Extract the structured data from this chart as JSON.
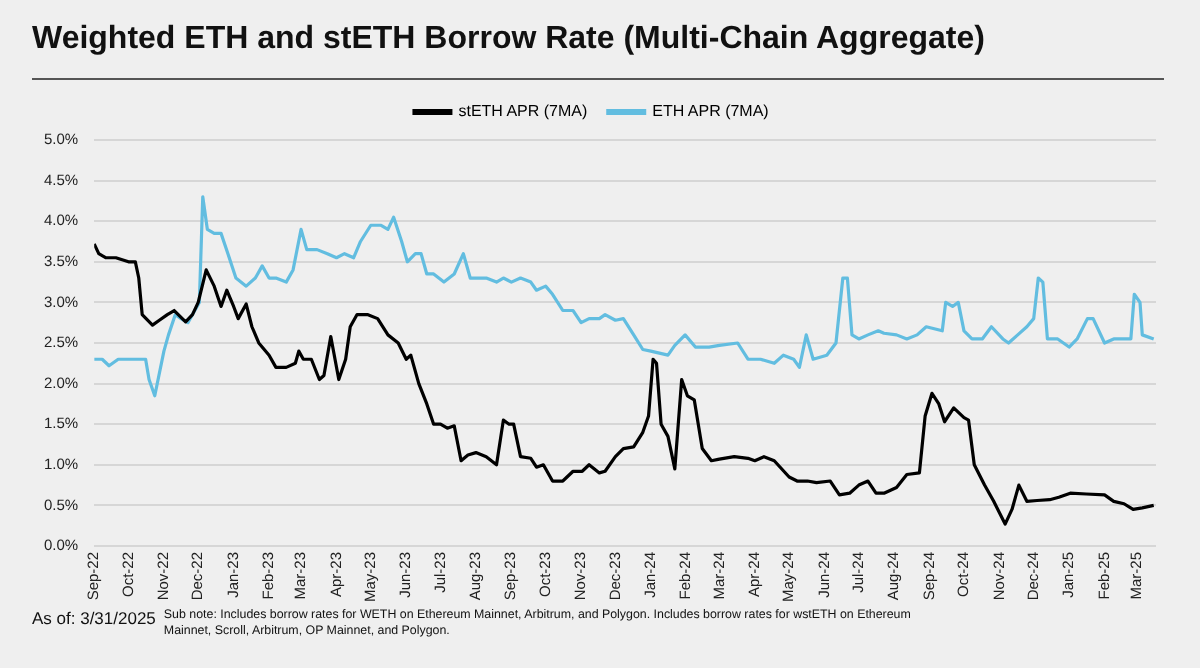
{
  "chart_data": {
    "type": "line",
    "title": "Weighted ETH and stETH Borrow Rate (Multi-Chain Aggregate)",
    "annotations": [
      "As of: 3/31/2025",
      "Sub note: Includes borrow rates for WETH on Ethereum Mainnet, Arbitrum, and Polygon. Includes borrow rates for wstETH on Ethereum Mainnet, Scroll, Arbitrum, OP Mainnet, and Polygon."
    ],
    "series": [
      {
        "name": "stETH APR (7MA)",
        "color": "#000000",
        "x": [
          "2022-09-01",
          "2022-09-05",
          "2022-09-11",
          "2022-09-20",
          "2022-10-01",
          "2022-10-07",
          "2022-10-10",
          "2022-10-13",
          "2022-10-22",
          "2022-10-28",
          "2022-11-04",
          "2022-11-10",
          "2022-11-20",
          "2022-11-26",
          "2022-12-01",
          "2022-12-08",
          "2022-12-15",
          "2022-12-21",
          "2022-12-26",
          "2023-01-01",
          "2023-01-05",
          "2023-01-12",
          "2023-01-17",
          "2023-01-23",
          "2023-02-01",
          "2023-02-07",
          "2023-02-16",
          "2023-02-24",
          "2023-02-27",
          "2023-03-03",
          "2023-03-10",
          "2023-03-17",
          "2023-03-21",
          "2023-03-27",
          "2023-04-03",
          "2023-04-09",
          "2023-04-13",
          "2023-04-19",
          "2023-04-28",
          "2023-05-07",
          "2023-05-16",
          "2023-05-25",
          "2023-06-01",
          "2023-06-05",
          "2023-06-12",
          "2023-06-19",
          "2023-06-25",
          "2023-07-01",
          "2023-07-07",
          "2023-07-13",
          "2023-07-19",
          "2023-07-25",
          "2023-08-01",
          "2023-08-10",
          "2023-08-19",
          "2023-08-25",
          "2023-08-30",
          "2023-09-03",
          "2023-09-09",
          "2023-09-18",
          "2023-09-23",
          "2023-09-29",
          "2023-10-07",
          "2023-10-16",
          "2023-10-25",
          "2023-11-02",
          "2023-11-08",
          "2023-11-17",
          "2023-11-22",
          "2023-12-01",
          "2023-12-08",
          "2023-12-17",
          "2023-12-25",
          "2023-12-30",
          "2024-01-03",
          "2024-01-06",
          "2024-01-10",
          "2024-01-16",
          "2024-01-22",
          "2024-01-28",
          "2024-02-02",
          "2024-02-08",
          "2024-02-15",
          "2024-02-23",
          "2024-03-01",
          "2024-03-14",
          "2024-03-26",
          "2024-04-01",
          "2024-04-09",
          "2024-04-18",
          "2024-05-01",
          "2024-05-08",
          "2024-05-17",
          "2024-05-25",
          "2024-06-06",
          "2024-06-14",
          "2024-06-23",
          "2024-07-01",
          "2024-07-09",
          "2024-07-16",
          "2024-07-23",
          "2024-08-03",
          "2024-08-12",
          "2024-08-23",
          "2024-08-28",
          "2024-09-03",
          "2024-09-09",
          "2024-09-14",
          "2024-09-22",
          "2024-10-01",
          "2024-10-05",
          "2024-10-10",
          "2024-10-19",
          "2024-10-27",
          "2024-11-06",
          "2024-11-12",
          "2024-11-18",
          "2024-11-25",
          "2024-12-04",
          "2024-12-15",
          "2024-12-23",
          "2025-01-02",
          "2025-01-16",
          "2025-02-01",
          "2025-02-09",
          "2025-02-18",
          "2025-02-26",
          "2025-03-06",
          "2025-03-16"
        ],
        "values": [
          3.72,
          3.6,
          3.55,
          3.55,
          3.5,
          3.5,
          3.3,
          2.85,
          2.72,
          2.78,
          2.85,
          2.9,
          2.76,
          2.85,
          3.0,
          3.4,
          3.2,
          2.95,
          3.15,
          2.95,
          2.8,
          2.98,
          2.7,
          2.5,
          2.35,
          2.2,
          2.2,
          2.25,
          2.4,
          2.3,
          2.3,
          2.05,
          2.1,
          2.58,
          2.05,
          2.3,
          2.7,
          2.85,
          2.85,
          2.8,
          2.6,
          2.5,
          2.3,
          2.35,
          2.0,
          1.75,
          1.5,
          1.5,
          1.45,
          1.48,
          1.05,
          1.12,
          1.15,
          1.1,
          1.0,
          1.55,
          1.5,
          1.5,
          1.1,
          1.08,
          0.97,
          1.0,
          0.8,
          0.8,
          0.92,
          0.92,
          1.0,
          0.9,
          0.92,
          1.1,
          1.2,
          1.22,
          1.4,
          1.6,
          2.3,
          2.25,
          1.5,
          1.35,
          0.95,
          2.05,
          1.85,
          1.8,
          1.2,
          1.05,
          1.07,
          1.1,
          1.08,
          1.05,
          1.1,
          1.05,
          0.85,
          0.8,
          0.8,
          0.78,
          0.8,
          0.63,
          0.65,
          0.75,
          0.8,
          0.65,
          0.65,
          0.72,
          0.88,
          0.9,
          1.6,
          1.88,
          1.75,
          1.53,
          1.7,
          1.58,
          1.55,
          1.0,
          0.75,
          0.55,
          0.27,
          0.45,
          0.75,
          0.55,
          0.56,
          0.57,
          0.6,
          0.65,
          0.64,
          0.63,
          0.55,
          0.52,
          0.45,
          0.47,
          0.5
        ]
      },
      {
        "name": "ETH APR (7MA)",
        "color": "#62bde0",
        "x": [
          "2022-09-01",
          "2022-09-08",
          "2022-09-14",
          "2022-09-22",
          "2022-10-01",
          "2022-10-07",
          "2022-10-16",
          "2022-10-19",
          "2022-10-24",
          "2022-11-01",
          "2022-11-05",
          "2022-11-11",
          "2022-11-16",
          "2022-11-22",
          "2022-11-28",
          "2022-12-02",
          "2022-12-05",
          "2022-12-09",
          "2022-12-15",
          "2022-12-21",
          "2022-12-27",
          "2023-01-03",
          "2023-01-12",
          "2023-01-20",
          "2023-01-26",
          "2023-02-01",
          "2023-02-07",
          "2023-02-16",
          "2023-02-22",
          "2023-03-01",
          "2023-03-06",
          "2023-03-15",
          "2023-03-24",
          "2023-04-01",
          "2023-04-08",
          "2023-04-16",
          "2023-04-22",
          "2023-05-01",
          "2023-05-10",
          "2023-05-16",
          "2023-05-21",
          "2023-05-28",
          "2023-06-02",
          "2023-06-09",
          "2023-06-14",
          "2023-06-19",
          "2023-06-25",
          "2023-07-04",
          "2023-07-13",
          "2023-07-21",
          "2023-07-27",
          "2023-08-01",
          "2023-08-10",
          "2023-08-19",
          "2023-08-25",
          "2023-09-01",
          "2023-09-09",
          "2023-09-18",
          "2023-09-23",
          "2023-10-01",
          "2023-10-07",
          "2023-10-16",
          "2023-10-25",
          "2023-11-01",
          "2023-11-08",
          "2023-11-17",
          "2023-11-22",
          "2023-12-01",
          "2023-12-08",
          "2023-12-17",
          "2023-12-25",
          "2024-01-01",
          "2024-01-16",
          "2024-01-22",
          "2024-01-31",
          "2024-02-09",
          "2024-02-21",
          "2024-03-01",
          "2024-03-17",
          "2024-03-26",
          "2024-04-06",
          "2024-04-18",
          "2024-04-26",
          "2024-05-05",
          "2024-05-10",
          "2024-05-16",
          "2024-05-22",
          "2024-06-03",
          "2024-06-11",
          "2024-06-17",
          "2024-06-21",
          "2024-06-25",
          "2024-07-01",
          "2024-07-09",
          "2024-07-18",
          "2024-07-23",
          "2024-08-03",
          "2024-08-12",
          "2024-08-21",
          "2024-08-29",
          "2024-09-12",
          "2024-09-15",
          "2024-09-21",
          "2024-09-26",
          "2024-10-01",
          "2024-10-08",
          "2024-10-17",
          "2024-10-25",
          "2024-11-04",
          "2024-11-09",
          "2024-11-17",
          "2024-11-25",
          "2024-12-01",
          "2024-12-05",
          "2024-12-09",
          "2024-12-13",
          "2024-12-22",
          "2025-01-01",
          "2025-01-08",
          "2025-01-17",
          "2025-01-22",
          "2025-02-01",
          "2025-02-09",
          "2025-02-24",
          "2025-02-27",
          "2025-03-04",
          "2025-03-06",
          "2025-03-16"
        ],
        "values": [
          2.3,
          2.3,
          2.22,
          2.3,
          2.3,
          2.3,
          2.3,
          2.05,
          1.85,
          2.4,
          2.6,
          2.85,
          2.8,
          2.75,
          2.9,
          3.0,
          4.3,
          3.9,
          3.85,
          3.85,
          3.6,
          3.3,
          3.2,
          3.3,
          3.45,
          3.3,
          3.3,
          3.25,
          3.4,
          3.9,
          3.65,
          3.65,
          3.6,
          3.55,
          3.6,
          3.55,
          3.75,
          3.95,
          3.95,
          3.9,
          4.05,
          3.75,
          3.5,
          3.6,
          3.6,
          3.35,
          3.35,
          3.25,
          3.35,
          3.6,
          3.3,
          3.3,
          3.3,
          3.25,
          3.3,
          3.25,
          3.3,
          3.25,
          3.15,
          3.2,
          3.1,
          2.9,
          2.9,
          2.75,
          2.8,
          2.8,
          2.85,
          2.78,
          2.8,
          2.6,
          2.42,
          2.4,
          2.35,
          2.47,
          2.6,
          2.45,
          2.45,
          2.47,
          2.5,
          2.3,
          2.3,
          2.25,
          2.35,
          2.3,
          2.2,
          2.6,
          2.3,
          2.35,
          2.5,
          3.3,
          3.3,
          2.6,
          2.55,
          2.6,
          2.65,
          2.62,
          2.6,
          2.55,
          2.6,
          2.7,
          2.65,
          3.0,
          2.95,
          3.0,
          2.65,
          2.55,
          2.55,
          2.7,
          2.55,
          2.5,
          2.6,
          2.7,
          2.8,
          3.3,
          3.25,
          2.55,
          2.55,
          2.45,
          2.55,
          2.8,
          2.8,
          2.5,
          2.55,
          2.55,
          3.1,
          3.0,
          2.6,
          2.55
        ]
      }
    ],
    "xlim": [
      "2022-09-01",
      "2025-03-18"
    ],
    "xticks": [
      {
        "value": "2022-09-01",
        "label": "Sep-22"
      },
      {
        "value": "2022-10-01",
        "label": "Oct-22"
      },
      {
        "value": "2022-11-01",
        "label": "Nov-22"
      },
      {
        "value": "2022-12-01",
        "label": "Dec-22"
      },
      {
        "value": "2023-01-01",
        "label": "Jan-23"
      },
      {
        "value": "2023-02-01",
        "label": "Feb-23"
      },
      {
        "value": "2023-03-01",
        "label": "Mar-23"
      },
      {
        "value": "2023-04-01",
        "label": "Apr-23"
      },
      {
        "value": "2023-05-01",
        "label": "May-23"
      },
      {
        "value": "2023-06-01",
        "label": "Jun-23"
      },
      {
        "value": "2023-07-01",
        "label": "Jul-23"
      },
      {
        "value": "2023-08-01",
        "label": "Aug-23"
      },
      {
        "value": "2023-09-01",
        "label": "Sep-23"
      },
      {
        "value": "2023-10-01",
        "label": "Oct-23"
      },
      {
        "value": "2023-11-01",
        "label": "Nov-23"
      },
      {
        "value": "2023-12-01",
        "label": "Dec-23"
      },
      {
        "value": "2024-01-01",
        "label": "Jan-24"
      },
      {
        "value": "2024-02-01",
        "label": "Feb-24"
      },
      {
        "value": "2024-03-01",
        "label": "Mar-24"
      },
      {
        "value": "2024-04-01",
        "label": "Apr-24"
      },
      {
        "value": "2024-05-01",
        "label": "May-24"
      },
      {
        "value": "2024-06-01",
        "label": "Jun-24"
      },
      {
        "value": "2024-07-01",
        "label": "Jul-24"
      },
      {
        "value": "2024-08-01",
        "label": "Aug-24"
      },
      {
        "value": "2024-09-01",
        "label": "Sep-24"
      },
      {
        "value": "2024-10-01",
        "label": "Oct-24"
      },
      {
        "value": "2024-11-01",
        "label": "Nov-24"
      },
      {
        "value": "2024-12-01",
        "label": "Dec-24"
      },
      {
        "value": "2025-01-01",
        "label": "Jan-25"
      },
      {
        "value": "2025-02-01",
        "label": "Feb-25"
      },
      {
        "value": "2025-03-01",
        "label": "Mar-25"
      }
    ],
    "ylim": [
      0,
      5
    ],
    "yticks": [
      {
        "value": 0,
        "label": "0.0%"
      },
      {
        "value": 0.5,
        "label": "0.5%"
      },
      {
        "value": 1,
        "label": "1.0%"
      },
      {
        "value": 1.5,
        "label": "1.5%"
      },
      {
        "value": 2,
        "label": "2.0%"
      },
      {
        "value": 2.5,
        "label": "2.5%"
      },
      {
        "value": 3,
        "label": "3.0%"
      },
      {
        "value": 3.5,
        "label": "3.5%"
      },
      {
        "value": 4,
        "label": "4.0%"
      },
      {
        "value": 4.5,
        "label": "4.5%"
      },
      {
        "value": 5,
        "label": "5.0%"
      }
    ],
    "grid": "y",
    "legend": "top",
    "marker": "none",
    "line_style": "solid"
  }
}
